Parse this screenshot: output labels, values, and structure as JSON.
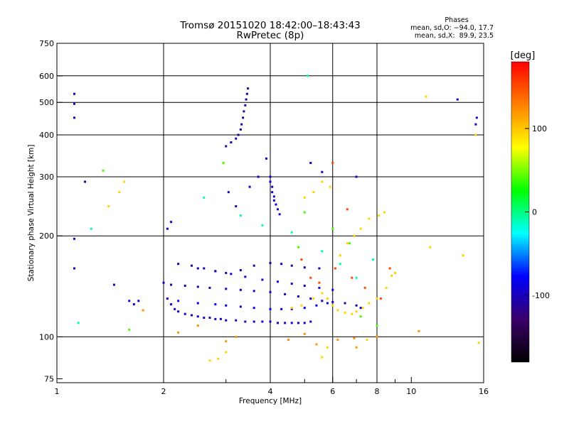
{
  "chart_data": {
    "type": "scatter",
    "title": "Tromsø 20151020 18:42:00–18:43:43",
    "subtitle": "RwPretec (8p)",
    "xlabel": "Frequency [MHz]",
    "ylabel": "Stationary phase Virtual Height [km]",
    "x_scale": "log",
    "y_scale": "log",
    "xlim": [
      1,
      16
    ],
    "ylim": [
      73,
      750
    ],
    "x_ticks": [
      1,
      2,
      4,
      6,
      8,
      10,
      16
    ],
    "x_gridlines": [
      2,
      4,
      6,
      8
    ],
    "x_minor_ticks": [
      3,
      5,
      7,
      9
    ],
    "y_ticks": [
      75,
      100,
      200,
      300,
      400,
      500,
      600,
      750
    ],
    "y_gridlines": [
      100,
      200,
      300,
      400,
      500,
      600
    ],
    "grid": true,
    "phase_box": {
      "heading": "Phases",
      "line1": "mean, sd,O: −94.0, 17.7",
      "line2": "mean, sd,X:  89.9, 23.5"
    },
    "colorbar": {
      "label": "[deg]",
      "ticks": [
        100,
        0,
        -100
      ],
      "range": [
        -180,
        180
      ],
      "colormap": "rainbow",
      "stops": [
        "#000000",
        "#3a006a",
        "#0000ff",
        "#00ffff",
        "#00ff00",
        "#ffff00",
        "#ff8000",
        "#ff0000"
      ]
    },
    "series": [
      {
        "values": [
          [
            2.05,
            130
          ],
          [
            2.1,
            125
          ],
          [
            2.15,
            121
          ],
          [
            2.2,
            119
          ],
          [
            2.3,
            117
          ],
          [
            2.4,
            116
          ],
          [
            2.5,
            115
          ],
          [
            2.6,
            114
          ],
          [
            2.7,
            114
          ],
          [
            2.8,
            113
          ],
          [
            2.9,
            113
          ],
          [
            3.0,
            112
          ],
          [
            3.2,
            112
          ],
          [
            3.4,
            111
          ],
          [
            3.6,
            111
          ],
          [
            3.8,
            111
          ],
          [
            4.0,
            111
          ],
          [
            4.2,
            110
          ],
          [
            4.4,
            110
          ],
          [
            4.6,
            110
          ],
          [
            4.8,
            110
          ],
          [
            5.0,
            110
          ],
          [
            5.2,
            111
          ]
        ],
        "phase": -95
      },
      {
        "values": [
          [
            2.2,
            128
          ],
          [
            2.5,
            126
          ],
          [
            2.8,
            125
          ],
          [
            3.0,
            124
          ],
          [
            3.3,
            123
          ],
          [
            3.6,
            122
          ],
          [
            4.0,
            121
          ],
          [
            4.3,
            121
          ],
          [
            4.6,
            121
          ],
          [
            5.0,
            122
          ],
          [
            5.4,
            124
          ],
          [
            5.8,
            126
          ]
        ],
        "phase": -85
      },
      {
        "values": [
          [
            2.0,
            145
          ],
          [
            2.1,
            143
          ],
          [
            2.3,
            142
          ],
          [
            2.5,
            141
          ],
          [
            2.7,
            140
          ],
          [
            3.0,
            139
          ],
          [
            3.3,
            138
          ],
          [
            3.6,
            137
          ],
          [
            4.0,
            136
          ],
          [
            4.4,
            134
          ],
          [
            4.8,
            132
          ],
          [
            5.2,
            130
          ],
          [
            5.6,
            128
          ],
          [
            6.0,
            127
          ],
          [
            6.5,
            126
          ],
          [
            7.0,
            124
          ],
          [
            7.2,
            122
          ]
        ],
        "phase": -100
      },
      {
        "values": [
          [
            2.5,
            160
          ],
          [
            2.8,
            157
          ],
          [
            3.1,
            154
          ],
          [
            3.4,
            151
          ],
          [
            3.8,
            148
          ],
          [
            4.2,
            146
          ],
          [
            4.6,
            144
          ],
          [
            5.0,
            142
          ],
          [
            5.5,
            140
          ],
          [
            6.0,
            138
          ]
        ],
        "phase": -90
      },
      {
        "values": [
          [
            2.2,
            165
          ],
          [
            2.4,
            163
          ],
          [
            2.6,
            160
          ],
          [
            2.8,
            157
          ],
          [
            3.0,
            155
          ],
          [
            3.3,
            158
          ],
          [
            3.6,
            163
          ],
          [
            4.0,
            166
          ],
          [
            4.3,
            165
          ],
          [
            4.6,
            163
          ],
          [
            5.0,
            161
          ],
          [
            5.5,
            160
          ]
        ],
        "phase": -105
      },
      {
        "values": [
          [
            3.0,
            370
          ],
          [
            3.1,
            380
          ],
          [
            3.2,
            390
          ],
          [
            3.25,
            400
          ],
          [
            3.3,
            415
          ],
          [
            3.32,
            430
          ],
          [
            3.35,
            450
          ],
          [
            3.37,
            470
          ],
          [
            3.4,
            490
          ],
          [
            3.42,
            510
          ],
          [
            3.44,
            530
          ],
          [
            3.46,
            550
          ]
        ],
        "phase": -110
      },
      {
        "values": [
          [
            4.0,
            300
          ],
          [
            4.0,
            290
          ],
          [
            4.05,
            280
          ],
          [
            4.05,
            270
          ],
          [
            4.1,
            262
          ],
          [
            4.1,
            255
          ],
          [
            4.15,
            248
          ],
          [
            4.2,
            240
          ],
          [
            4.25,
            232
          ]
        ],
        "phase": -100
      },
      {
        "values": [
          [
            1.12,
            530
          ],
          [
            1.12,
            495
          ],
          [
            1.12,
            450
          ],
          [
            1.12,
            160
          ],
          [
            1.12,
            196
          ],
          [
            1.2,
            290
          ],
          [
            1.45,
            143
          ],
          [
            1.6,
            128
          ],
          [
            1.65,
            125
          ],
          [
            1.7,
            128
          ],
          [
            2.05,
            210
          ],
          [
            2.1,
            220
          ],
          [
            3.05,
            270
          ],
          [
            3.2,
            245
          ],
          [
            3.5,
            280
          ],
          [
            3.7,
            300
          ],
          [
            3.9,
            340
          ],
          [
            5.2,
            330
          ],
          [
            5.6,
            310
          ],
          [
            7.0,
            300
          ],
          [
            13.5,
            510
          ],
          [
            15.2,
            430
          ],
          [
            15.3,
            450
          ]
        ],
        "phase": -95
      },
      {
        "values": [
          [
            4.6,
            122
          ],
          [
            4.9,
            124
          ],
          [
            5.3,
            130
          ],
          [
            5.6,
            135
          ],
          [
            5.8,
            130
          ],
          [
            6.0,
            124
          ],
          [
            6.2,
            120
          ],
          [
            6.5,
            118
          ],
          [
            6.8,
            117
          ],
          [
            7.0,
            119
          ],
          [
            7.3,
            122
          ],
          [
            7.6,
            126
          ],
          [
            8.0,
            130
          ],
          [
            8.5,
            140
          ],
          [
            8.8,
            152
          ],
          [
            9.0,
            155
          ],
          [
            6.3,
            175
          ],
          [
            6.6,
            190
          ],
          [
            6.9,
            200
          ],
          [
            7.2,
            210
          ],
          [
            7.6,
            225
          ],
          [
            8.1,
            230
          ],
          [
            8.4,
            235
          ],
          [
            5.0,
            260
          ],
          [
            5.3,
            270
          ],
          [
            5.6,
            290
          ],
          [
            5.9,
            280
          ],
          [
            1.4,
            245
          ],
          [
            1.5,
            270
          ],
          [
            1.55,
            290
          ],
          [
            2.7,
            85
          ],
          [
            2.85,
            86
          ],
          [
            3.0,
            90
          ],
          [
            5.6,
            87
          ],
          [
            5.8,
            93
          ],
          [
            7.5,
            98
          ],
          [
            11,
            520
          ],
          [
            15.2,
            400
          ],
          [
            15.5,
            96
          ],
          [
            11.3,
            185
          ],
          [
            14.0,
            175
          ]
        ],
        "phase": 95
      },
      {
        "values": [
          [
            5.2,
            150
          ],
          [
            5.5,
            145
          ],
          [
            6.1,
            160
          ],
          [
            6.8,
            150
          ],
          [
            7.4,
            140
          ],
          [
            8.2,
            130
          ],
          [
            8.7,
            160
          ],
          [
            6.0,
            330
          ],
          [
            6.6,
            240
          ],
          [
            4.9,
            170
          ]
        ],
        "phase": 150
      },
      {
        "values": [
          [
            1.15,
            110
          ],
          [
            1.25,
            210
          ],
          [
            2.6,
            260
          ],
          [
            3.3,
            230
          ],
          [
            3.8,
            215
          ],
          [
            4.6,
            205
          ],
          [
            5.6,
            180
          ],
          [
            6.3,
            165
          ],
          [
            7.0,
            150
          ],
          [
            7.8,
            170
          ],
          [
            5.1,
            600
          ]
        ],
        "phase": -10
      },
      {
        "values": [
          [
            1.35,
            313
          ],
          [
            1.6,
            105
          ],
          [
            2.95,
            330
          ],
          [
            5.0,
            235
          ],
          [
            6.0,
            210
          ],
          [
            6.7,
            190
          ],
          [
            7.2,
            115
          ],
          [
            8.0,
            108
          ],
          [
            4.8,
            185
          ]
        ],
        "phase": 40
      },
      {
        "values": [
          [
            1.75,
            120
          ],
          [
            2.2,
            103
          ],
          [
            2.5,
            108
          ],
          [
            3.0,
            97
          ],
          [
            3.2,
            100
          ],
          [
            4.5,
            98
          ],
          [
            5.0,
            102
          ],
          [
            5.4,
            95
          ],
          [
            6.2,
            98
          ],
          [
            6.9,
            99
          ],
          [
            8.0,
            100
          ],
          [
            10.5,
            104
          ],
          [
            7.0,
            93
          ]
        ],
        "phase": 120
      }
    ]
  }
}
